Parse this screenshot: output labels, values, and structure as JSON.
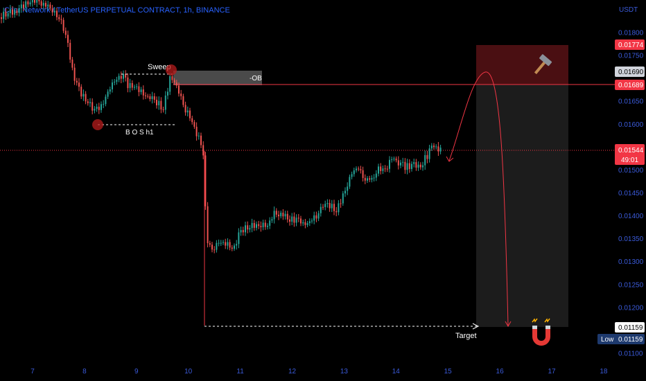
{
  "header": {
    "title": "Cifer Network / TetherUS PERPETUAL CONTRACT, 1h, BINANCE"
  },
  "price_axis": {
    "currency": "USDT",
    "ticks": [
      "0.01800",
      "0.01750",
      "0.01650",
      "0.01600",
      "0.01500",
      "0.01450",
      "0.01400",
      "0.01350",
      "0.01300",
      "0.01250",
      "0.01200",
      "0.01100"
    ],
    "tick_values": [
      0.018,
      0.0175,
      0.0165,
      0.016,
      0.015,
      0.0145,
      0.014,
      0.0135,
      0.013,
      0.0125,
      0.012,
      0.011
    ]
  },
  "time_axis": {
    "labels": [
      "7",
      "8",
      "9",
      "10",
      "11",
      "12",
      "13",
      "14",
      "15",
      "16",
      "17",
      "18"
    ]
  },
  "price_labels": {
    "top_box": "0.01774",
    "level_gray": "0.01690",
    "level_red": "0.01689",
    "current_price": "0.01544",
    "countdown": "49:01",
    "target": "0.01159",
    "low_label": "Low",
    "low_value": "0.01159"
  },
  "annotations": {
    "sweep": "Sweep",
    "ob": "-OB",
    "bos": "B O S h1",
    "target": "Target"
  },
  "icons": {
    "hammer": "hammer-icon",
    "magnet": "magnet-icon"
  },
  "colors": {
    "up": "#26a69a",
    "down": "#ef5350",
    "accent": "#2962ff",
    "level": "#f23645",
    "zone_red": "#4a0f12",
    "zone_gray": "#1c1c1c"
  }
}
